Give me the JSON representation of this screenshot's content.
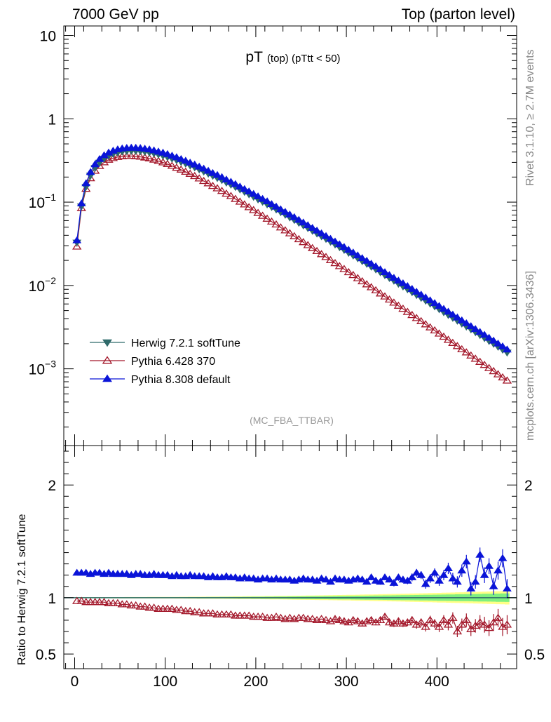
{
  "header": {
    "left": "7000 GeV pp",
    "right": "Top (parton level)"
  },
  "side_labels": {
    "rivet": "Rivet 3.1.10, ≥ 2.7M events",
    "mcplots": "mcplots.cern.ch [arXiv:1306.3436]"
  },
  "chart_data": [
    {
      "type": "scatter",
      "title_main": "pT",
      "title_sub": "(top) (pTtt < 50)",
      "watermark": "(MC_FBA_TTBAR)",
      "yscale": "log",
      "xlim": [
        -12,
        488
      ],
      "ylim": [
        0.00012,
        13
      ],
      "yticks": [
        {
          "value": 10,
          "base": "10",
          "exp": ""
        },
        {
          "value": 1,
          "base": "1",
          "exp": ""
        },
        {
          "value": 0.1,
          "base": "10",
          "exp": "−1"
        },
        {
          "value": 0.01,
          "base": "10",
          "exp": "−2"
        },
        {
          "value": 0.001,
          "base": "10",
          "exp": "−3"
        }
      ],
      "legend_position": "bottom-left",
      "series": [
        {
          "name": "Herwig 7.2.1 softTune",
          "color": "#2f6a6a",
          "marker": "triangle-down-filled"
        },
        {
          "name": "Pythia 6.428 370",
          "color": "#a3172a",
          "marker": "triangle-up-open"
        },
        {
          "name": "Pythia 8.308 default",
          "color": "#0a14d8",
          "marker": "triangle-up-filled"
        }
      ],
      "x": [
        2.5,
        7.5,
        12.5,
        17.5,
        22.5,
        27.5,
        32.5,
        37.5,
        42.5,
        47.5,
        52.5,
        57.5,
        62.5,
        67.5,
        72.5,
        77.5,
        82.5,
        87.5,
        92.5,
        97.5,
        102.5,
        107.5,
        112.5,
        117.5,
        122.5,
        127.5,
        132.5,
        137.5,
        142.5,
        147.5,
        152.5,
        157.5,
        162.5,
        167.5,
        172.5,
        177.5,
        182.5,
        187.5,
        192.5,
        197.5,
        202.5,
        207.5,
        212.5,
        217.5,
        222.5,
        227.5,
        232.5,
        237.5,
        242.5,
        247.5,
        252.5,
        257.5,
        262.5,
        267.5,
        272.5,
        277.5,
        282.5,
        287.5,
        292.5,
        297.5,
        302.5,
        307.5,
        312.5,
        317.5,
        322.5,
        327.5,
        332.5,
        337.5,
        342.5,
        347.5,
        352.5,
        357.5,
        362.5,
        367.5,
        372.5,
        377.5,
        382.5,
        387.5,
        392.5,
        397.5,
        402.5,
        407.5,
        412.5,
        417.5,
        422.5,
        427.5,
        432.5,
        437.5,
        442.5,
        447.5,
        452.5,
        457.5,
        462.5,
        467.5,
        472.5,
        477.5
      ],
      "herwig": [
        0.0328,
        0.089,
        0.153,
        0.208,
        0.258,
        0.298,
        0.332,
        0.359,
        0.379,
        0.394,
        0.404,
        0.41,
        0.413,
        0.412,
        0.409,
        0.403,
        0.395,
        0.385,
        0.373,
        0.361,
        0.347,
        0.333,
        0.319,
        0.304,
        0.29,
        0.275,
        0.261,
        0.247,
        0.233,
        0.22,
        0.207,
        0.195,
        0.184,
        0.172,
        0.162,
        0.152,
        0.142,
        0.133,
        0.124,
        0.116,
        0.108,
        0.101,
        0.0941,
        0.0876,
        0.0816,
        0.0759,
        0.0706,
        0.0656,
        0.061,
        0.0566,
        0.0526,
        0.0488,
        0.0453,
        0.0421,
        0.039,
        0.0362,
        0.0335,
        0.0311,
        0.0288,
        0.0267,
        0.0247,
        0.0229,
        0.0212,
        0.0196,
        0.0182,
        0.0168,
        0.0156,
        0.0144,
        0.0133,
        0.0123,
        0.0114,
        0.0105,
        0.00974,
        0.009,
        0.00832,
        0.00769,
        0.00711,
        0.00657,
        0.00607,
        0.00561,
        0.00519,
        0.00479,
        0.00443,
        0.00409,
        0.00378,
        0.00349,
        0.00322,
        0.00298,
        0.00275,
        0.00254,
        0.00234,
        0.00216,
        0.002,
        0.00184,
        0.0017,
        0.00157
      ],
      "pythia6": [
        0.0292,
        0.0846,
        0.144,
        0.193,
        0.237,
        0.271,
        0.3,
        0.322,
        0.337,
        0.348,
        0.354,
        0.357,
        0.357,
        0.354,
        0.35,
        0.342,
        0.334,
        0.323,
        0.311,
        0.299,
        0.286,
        0.272,
        0.258,
        0.245,
        0.231,
        0.218,
        0.205,
        0.192,
        0.179,
        0.168,
        0.156,
        0.146,
        0.136,
        0.126,
        0.118,
        0.109,
        0.101,
        0.0937,
        0.0867,
        0.0801,
        0.074,
        0.0684,
        0.0631,
        0.0583,
        0.0538,
        0.0496,
        0.0457,
        0.0422,
        0.0389,
        0.0358,
        0.033,
        0.0304,
        0.028,
        0.0258,
        0.0237,
        0.0219,
        0.0201,
        0.0185,
        0.017,
        0.0157,
        0.0144,
        0.0133,
        0.0122,
        0.0112,
        0.0103,
        0.00949,
        0.00872,
        0.00801,
        0.00736,
        0.00676,
        0.00621,
        0.0057,
        0.00524,
        0.00481,
        0.00441,
        0.00405,
        0.00372,
        0.00341,
        0.00313,
        0.00288,
        0.00264,
        0.00242,
        0.00222,
        0.00204,
        0.00187,
        0.00171,
        0.00157,
        0.00144,
        0.00132,
        0.00121,
        0.00111,
        0.00102,
        0.000935,
        0.000857,
        0.000786,
        0.00072
      ],
      "pythia8": [
        0.0347,
        0.0963,
        0.168,
        0.229,
        0.284,
        0.328,
        0.364,
        0.392,
        0.413,
        0.429,
        0.439,
        0.446,
        0.449,
        0.448,
        0.444,
        0.437,
        0.428,
        0.417,
        0.403,
        0.391,
        0.376,
        0.36,
        0.345,
        0.328,
        0.313,
        0.297,
        0.282,
        0.266,
        0.252,
        0.237,
        0.223,
        0.211,
        0.199,
        0.186,
        0.175,
        0.164,
        0.153,
        0.143,
        0.134,
        0.125,
        0.117,
        0.109,
        0.102,
        0.0944,
        0.0881,
        0.0818,
        0.0762,
        0.0708,
        0.0658,
        0.0611,
        0.0568,
        0.0527,
        0.0489,
        0.0454,
        0.0421,
        0.0391,
        0.0362,
        0.0336,
        0.0311,
        0.0289,
        0.0267,
        0.0248,
        0.0229,
        0.0212,
        0.0197,
        0.0182,
        0.0169,
        0.0156,
        0.0144,
        0.0133,
        0.0123,
        0.0114,
        0.0106,
        0.00981,
        0.00907,
        0.00838,
        0.00775,
        0.00716,
        0.00662,
        0.00612,
        0.00566,
        0.00522,
        0.00483,
        0.00446,
        0.00412,
        0.0038,
        0.00351,
        0.00324,
        0.00299,
        0.00276,
        0.00255,
        0.00235,
        0.00217,
        0.002,
        0.00185,
        0.0017
      ]
    },
    {
      "type": "scatter",
      "ylabel": "Ratio to Herwig 7.2.1 softTune",
      "xlim": [
        -12,
        488
      ],
      "ylim": [
        0.37,
        2.35
      ],
      "yticks": [
        {
          "value": 2,
          "label": "2"
        },
        {
          "value": 1,
          "label": "1"
        },
        {
          "value": 0.5,
          "label": "0.5"
        }
      ],
      "xticks": [
        {
          "value": 0,
          "label": "0"
        },
        {
          "value": 100,
          "label": "100"
        },
        {
          "value": 200,
          "label": "200"
        },
        {
          "value": 300,
          "label": "300"
        },
        {
          "value": 400,
          "label": "400"
        }
      ],
      "band_colors": {
        "inner": "#7ff07f",
        "outer": "#ffff86"
      },
      "ratio_pythia8": [
        1.06,
        1.08,
        1.1,
        1.1,
        1.1,
        1.1,
        1.1,
        1.09,
        1.09,
        1.09,
        1.09,
        1.09,
        1.09,
        1.09,
        1.09,
        1.08,
        1.08,
        1.08,
        1.08,
        1.08,
        1.08,
        1.08,
        1.08,
        1.08,
        1.08,
        1.08,
        1.08,
        1.08,
        1.08,
        1.08,
        1.08,
        1.08,
        1.08,
        1.08,
        1.08,
        1.08,
        1.08,
        1.08,
        1.08,
        1.08,
        1.08,
        1.08,
        1.08,
        1.08,
        1.08,
        1.08,
        1.08,
        1.08,
        1.08,
        1.08,
        1.08,
        1.08,
        1.08,
        1.08,
        1.08,
        1.08,
        1.08,
        1.08,
        1.08,
        1.08,
        1.08,
        1.08,
        1.08,
        1.08,
        1.08,
        1.08,
        1.08,
        1.08,
        1.08,
        1.08,
        1.08,
        1.08,
        1.08,
        1.08,
        1.08,
        1.08,
        1.08,
        1.08,
        1.08,
        1.08,
        1.08,
        1.08,
        1.08,
        1.08,
        1.08,
        1.08,
        1.08,
        1.08,
        1.08,
        1.08,
        1.08,
        1.08,
        1.08,
        1.08,
        1.08,
        1.08
      ],
      "ratio_pythia8_display": [
        1.22,
        1.22,
        1.22,
        1.21,
        1.22,
        1.22,
        1.21,
        1.22,
        1.21,
        1.21,
        1.21,
        1.21,
        1.2,
        1.21,
        1.21,
        1.2,
        1.2,
        1.21,
        1.2,
        1.2,
        1.2,
        1.19,
        1.2,
        1.19,
        1.19,
        1.2,
        1.19,
        1.19,
        1.19,
        1.18,
        1.19,
        1.18,
        1.18,
        1.19,
        1.18,
        1.18,
        1.17,
        1.18,
        1.17,
        1.17,
        1.16,
        1.17,
        1.17,
        1.16,
        1.17,
        1.16,
        1.16,
        1.16,
        1.15,
        1.16,
        1.17,
        1.16,
        1.16,
        1.15,
        1.17,
        1.16,
        1.14,
        1.17,
        1.16,
        1.16,
        1.15,
        1.16,
        1.17,
        1.16,
        1.14,
        1.18,
        1.15,
        1.14,
        1.18,
        1.16,
        1.13,
        1.18,
        1.16,
        1.15,
        1.18,
        1.22,
        1.2,
        1.12,
        1.17,
        1.22,
        1.15,
        1.2,
        1.26,
        1.17,
        1.14,
        1.24,
        1.32,
        1.08,
        1.14,
        1.38,
        1.2,
        1.28,
        1.1,
        1.24,
        1.35,
        1.08
      ],
      "ratio_pythia6": [
        0.97,
        0.97,
        0.96,
        0.96,
        0.96,
        0.96,
        0.96,
        0.95,
        0.95,
        0.95,
        0.94,
        0.94,
        0.93,
        0.93,
        0.92,
        0.92,
        0.91,
        0.91,
        0.9,
        0.9,
        0.9,
        0.9,
        0.89,
        0.89,
        0.88,
        0.88,
        0.87,
        0.87,
        0.86,
        0.86,
        0.86,
        0.85,
        0.85,
        0.85,
        0.85,
        0.84,
        0.84,
        0.84,
        0.84,
        0.83,
        0.83,
        0.83,
        0.82,
        0.82,
        0.83,
        0.82,
        0.81,
        0.82,
        0.81,
        0.82,
        0.82,
        0.81,
        0.81,
        0.8,
        0.81,
        0.8,
        0.79,
        0.81,
        0.8,
        0.79,
        0.78,
        0.8,
        0.79,
        0.77,
        0.79,
        0.8,
        0.78,
        0.8,
        0.83,
        0.78,
        0.77,
        0.79,
        0.77,
        0.78,
        0.8,
        0.76,
        0.78,
        0.74,
        0.8,
        0.77,
        0.74,
        0.8,
        0.76,
        0.82,
        0.7,
        0.76,
        0.8,
        0.72,
        0.75,
        0.78,
        0.76,
        0.73,
        0.78,
        0.82,
        0.74,
        0.76
      ],
      "ratio_pythia8_errors": [
        0.01,
        0.01,
        0.01,
        0.01,
        0.01,
        0.01,
        0.01,
        0.01,
        0.01,
        0.01,
        0.01,
        0.01,
        0.01,
        0.01,
        0.01,
        0.01,
        0.01,
        0.01,
        0.01,
        0.01,
        0.01,
        0.01,
        0.01,
        0.01,
        0.01,
        0.01,
        0.01,
        0.01,
        0.01,
        0.01,
        0.01,
        0.01,
        0.01,
        0.01,
        0.01,
        0.01,
        0.01,
        0.01,
        0.01,
        0.01,
        0.01,
        0.01,
        0.01,
        0.01,
        0.01,
        0.01,
        0.01,
        0.01,
        0.01,
        0.015,
        0.015,
        0.015,
        0.015,
        0.015,
        0.015,
        0.015,
        0.015,
        0.02,
        0.02,
        0.02,
        0.02,
        0.02,
        0.02,
        0.02,
        0.02,
        0.025,
        0.025,
        0.025,
        0.025,
        0.025,
        0.03,
        0.03,
        0.03,
        0.03,
        0.035,
        0.035,
        0.035,
        0.04,
        0.04,
        0.04,
        0.045,
        0.045,
        0.05,
        0.05,
        0.05,
        0.055,
        0.06,
        0.06,
        0.06,
        0.065,
        0.07,
        0.07,
        0.075,
        0.08,
        0.08,
        0.085
      ]
    }
  ]
}
